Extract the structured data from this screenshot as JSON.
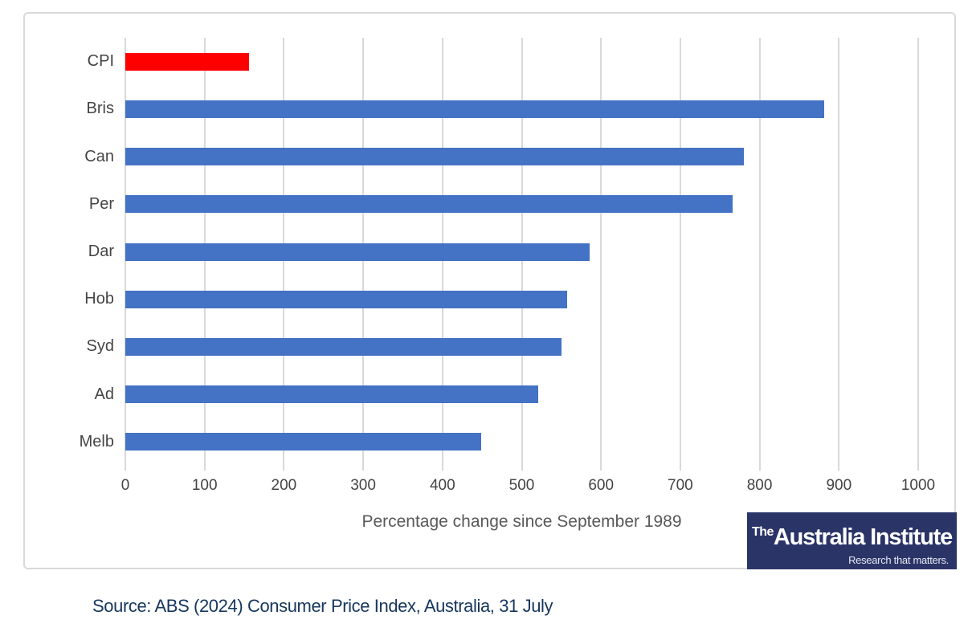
{
  "chart": {
    "frame_border_color": "#d9d9d9",
    "gridline_color": "#d9d9d9",
    "label_color": "#444444",
    "axis_title_color": "#595959"
  },
  "chart_data": {
    "type": "bar",
    "orientation": "horizontal",
    "categories": [
      "CPI",
      "Bris",
      "Can",
      "Per",
      "Dar",
      "Hob",
      "Syd",
      "Ad",
      "Melb"
    ],
    "values": [
      156,
      881,
      780,
      766,
      586,
      557,
      550,
      521,
      449
    ],
    "bar_colors": [
      "#ff0000",
      "#4472c4",
      "#4472c4",
      "#4472c4",
      "#4472c4",
      "#4472c4",
      "#4472c4",
      "#4472c4",
      "#4472c4"
    ],
    "highlight_index": 0,
    "default_bar_color": "#4472c4",
    "highlight_color": "#ff0000",
    "title": "",
    "xlabel": "Percentage change since September 1989",
    "ylabel": "",
    "xlim": [
      0,
      1000
    ],
    "xticks": [
      0,
      100,
      200,
      300,
      400,
      500,
      600,
      700,
      800,
      900,
      1000
    ],
    "grid": true,
    "legend": false
  },
  "logo": {
    "prefix": "The",
    "name": "Australia Institute",
    "tagline": "Research that matters.",
    "background": "#2b3467"
  },
  "source": {
    "text": "Source: ABS (2024) Consumer Price Index, Australia, 31 July"
  }
}
